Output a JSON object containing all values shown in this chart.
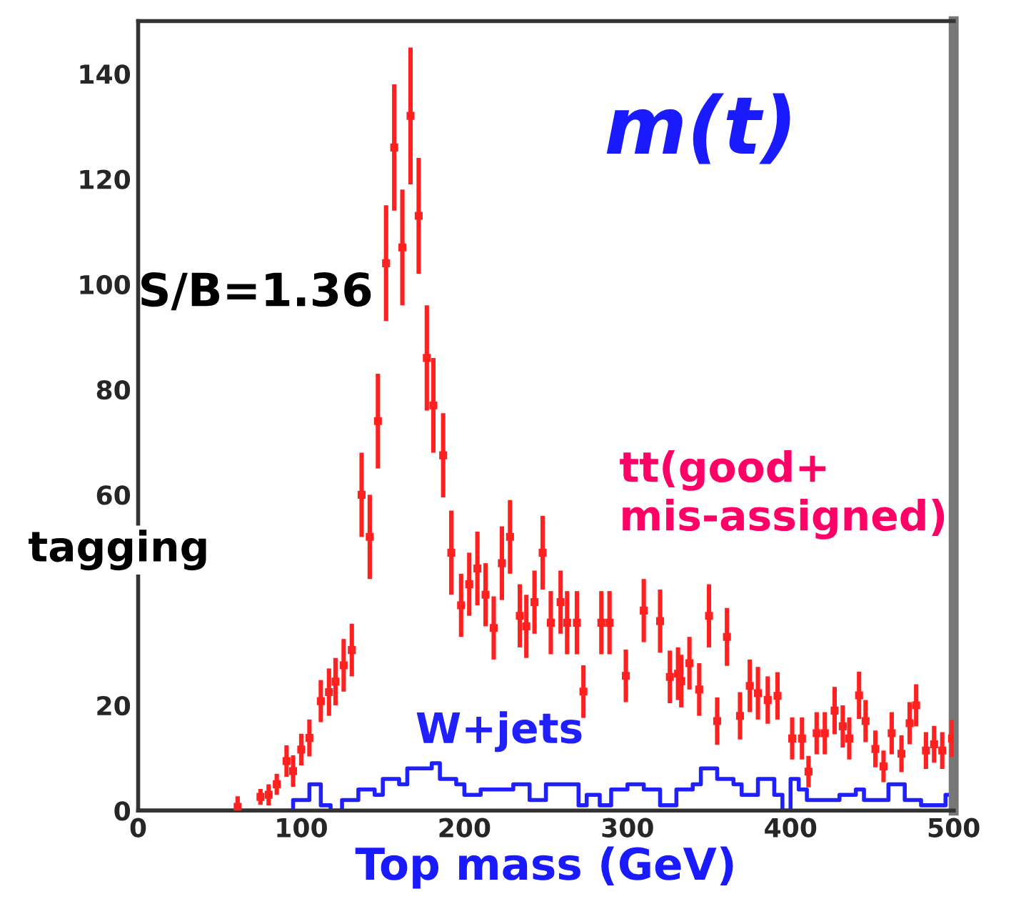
{
  "chart_data": {
    "type": "scatter",
    "xlabel": "Top mass (GeV)",
    "xlim": [
      0,
      500
    ],
    "ylim": [
      0,
      150
    ],
    "xticks": [
      0,
      100,
      200,
      300,
      400,
      500
    ],
    "yticks": [
      0,
      20,
      60,
      80,
      100,
      120,
      140
    ],
    "grid": false,
    "legend": false,
    "annotations": [
      "m(t)",
      "S/B=1.36",
      "tagging"
    ],
    "series": [
      {
        "name": "tt(good+\nmis-assigned)",
        "color": "#ff2020",
        "marker": "square",
        "x": [
          61,
          75,
          80,
          85,
          91,
          95,
          100,
          105,
          112,
          117,
          121,
          126,
          131,
          137,
          142,
          147,
          152,
          157,
          162,
          167,
          172,
          177,
          181,
          187,
          192,
          198,
          203,
          208,
          213,
          218,
          223,
          228,
          234,
          238,
          243,
          248,
          253,
          259,
          263,
          269,
          273,
          284,
          289,
          299,
          310,
          320,
          326,
          331,
          333,
          338,
          344,
          350,
          355,
          361,
          369,
          375,
          380,
          386,
          392,
          401,
          407,
          411,
          416,
          421,
          427,
          432,
          436,
          442,
          446,
          452,
          457,
          462,
          468,
          473,
          477,
          483,
          488,
          493,
          499
        ],
        "values": [
          0.7,
          2.6,
          3,
          5,
          9.4,
          7.5,
          11.6,
          13.8,
          20.8,
          22.5,
          24.5,
          27.6,
          30.5,
          60,
          52,
          74,
          104,
          126,
          107,
          132,
          113,
          86,
          77,
          67.5,
          49,
          39,
          43,
          46,
          41,
          34.7,
          47,
          52,
          37,
          35,
          39.6,
          49,
          35.7,
          39.6,
          35.7,
          35.7,
          22.6,
          35.7,
          35.7,
          25.6,
          38,
          36,
          25.4,
          26,
          24.6,
          28,
          23,
          37,
          17,
          33,
          18,
          23.7,
          22.3,
          21,
          21.8,
          13.7,
          13.7,
          7.4,
          14.7,
          14.7,
          19,
          16,
          13.7,
          21.9,
          17,
          11.7,
          8.4,
          14.7,
          10.8,
          16.6,
          20,
          11.4,
          12.6,
          11.4,
          13.7
        ],
        "errors": [
          2,
          1.5,
          2,
          2,
          3,
          3,
          3,
          3.5,
          4,
          4.5,
          4.5,
          5,
          5,
          8,
          8,
          9,
          11,
          12,
          11,
          13,
          11,
          10,
          9,
          8,
          8,
          6,
          6,
          7,
          6,
          6,
          7,
          7,
          6,
          6,
          6,
          7,
          6,
          6,
          6,
          6,
          5,
          6,
          6,
          5,
          6,
          6,
          5,
          5,
          5,
          5,
          5,
          6,
          4.5,
          5.5,
          4.5,
          5,
          5,
          4.5,
          4.5,
          4,
          4,
          3,
          4,
          4,
          4.5,
          4,
          4,
          4.5,
          4,
          3.5,
          3,
          4,
          3.5,
          4,
          4,
          3.5,
          3.5,
          3.5,
          3.5
        ]
      },
      {
        "name": "W+jets",
        "type": "step",
        "color": "#2020ff",
        "x": [
          0,
          90,
          95,
          105,
          112,
          118,
          125,
          135,
          145,
          150,
          160,
          165,
          180,
          185,
          195,
          200,
          210,
          230,
          240,
          250,
          262,
          270,
          275,
          283,
          290,
          300,
          310,
          320,
          330,
          340,
          345,
          355,
          365,
          370,
          380,
          390,
          395,
          400,
          405,
          410,
          420,
          430,
          440,
          445,
          455,
          460,
          470,
          480,
          495,
          500
        ],
        "values": [
          0,
          0,
          2,
          5,
          1,
          0,
          2,
          4,
          3,
          6,
          5,
          8,
          9,
          6,
          5,
          3,
          4,
          5,
          2,
          5,
          5,
          1,
          3,
          1,
          4,
          5,
          4,
          1,
          4,
          5,
          8,
          6,
          5,
          3,
          6,
          3,
          0,
          6,
          4,
          2,
          2,
          3,
          4,
          2,
          2,
          5,
          2,
          1,
          3,
          3
        ]
      }
    ]
  }
}
